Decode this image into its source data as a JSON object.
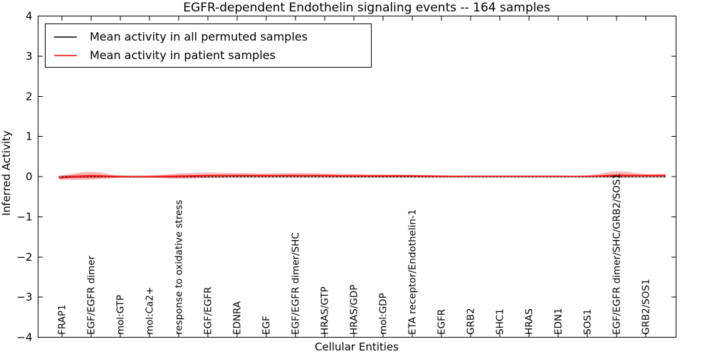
{
  "chart_data": {
    "type": "line",
    "title": "EGFR-dependent Endothelin signaling events -- 164 samples",
    "xlabel": "Cellular Entities",
    "ylabel": "Inferred Activity",
    "ylim": [
      -4,
      4
    ],
    "yticks": [
      4,
      3,
      2,
      1,
      0,
      -1,
      -2,
      -3,
      -4
    ],
    "grid": false,
    "legend_position": "upper left",
    "legend": [
      "Mean activity in all permuted samples",
      "Mean activity in patient samples"
    ],
    "categories": [
      "FRAP1",
      "EGF/EGFR dimer",
      "mol:GTP",
      "mol:Ca2+",
      "response to oxidative stress",
      "EGF/EGFR",
      "EDNRA",
      "EGF",
      "EGF/EGFR dimer/SHC",
      "HRAS/GTP",
      "HRAS/GDP",
      "mol:GDP",
      "ETA receptor/Endothelin-1",
      "EGFR",
      "GRB2",
      "SHC1",
      "HRAS",
      "EDN1",
      "SOS1",
      "EGF/EGFR dimer/SHC/GRB2/SOS1",
      "GRB2/SOS1"
    ],
    "series": [
      {
        "name": "Mean activity in all permuted samples",
        "color": "#000000",
        "linestyle": "dashed",
        "band_halfwidth": 0.035,
        "band_color": "#999999",
        "values": [
          0,
          0,
          0,
          0,
          0,
          0,
          0,
          0,
          0,
          0,
          0,
          0,
          0,
          0,
          0,
          0,
          0,
          0,
          0,
          0,
          0
        ]
      },
      {
        "name": "Mean activity in patient samples",
        "color": "#ff0000",
        "linestyle": "solid",
        "band_color": "#ff0000",
        "values": [
          -0.03,
          0.02,
          0.0,
          0.0,
          0.01,
          0.03,
          0.03,
          0.03,
          0.03,
          0.03,
          0.02,
          0.02,
          0.02,
          0.01,
          0.01,
          0.01,
          0.01,
          0.01,
          0.01,
          0.03,
          0.03
        ],
        "band_upper": [
          0.03,
          0.12,
          0.03,
          0.03,
          0.08,
          0.1,
          0.09,
          0.08,
          0.09,
          0.08,
          0.07,
          0.06,
          0.05,
          0.03,
          0.02,
          0.02,
          0.02,
          0.02,
          0.03,
          0.13,
          0.07
        ],
        "band_lower": [
          -0.08,
          -0.07,
          -0.03,
          -0.03,
          -0.05,
          -0.03,
          -0.02,
          -0.02,
          -0.02,
          -0.02,
          -0.02,
          -0.02,
          -0.02,
          -0.02,
          -0.01,
          -0.01,
          -0.01,
          -0.01,
          -0.01,
          -0.02,
          -0.01
        ]
      }
    ]
  }
}
